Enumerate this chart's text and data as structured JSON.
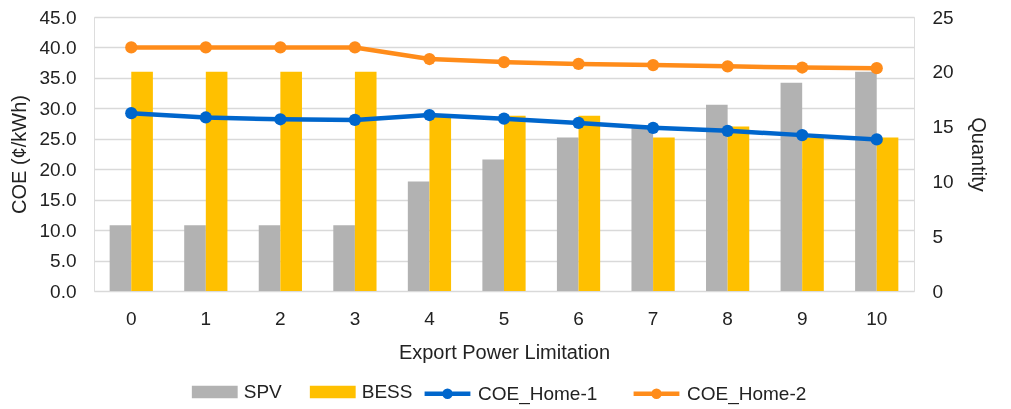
{
  "chart_data": {
    "type": "bar",
    "xlabel": "Export Power Limitation",
    "ylabel": "COE (¢/kWh)",
    "y2label": "Quantity",
    "categories": [
      "0",
      "1",
      "2",
      "3",
      "4",
      "5",
      "6",
      "7",
      "8",
      "9",
      "10"
    ],
    "series": [
      {
        "name": "SPV",
        "axis": "y2",
        "color": "#b2b2b2",
        "values": [
          6,
          6,
          6,
          6,
          10,
          12,
          14,
          15,
          17,
          19,
          20
        ]
      },
      {
        "name": "BESS",
        "axis": "y2",
        "color": "#ffc000",
        "values": [
          20,
          20,
          20,
          20,
          16,
          16,
          16,
          14,
          15,
          14,
          14
        ]
      },
      {
        "name": "COE_Home-1",
        "type": "line",
        "axis": "y",
        "color": "#0066cc",
        "values": [
          29.2,
          28.5,
          28.2,
          28.1,
          28.9,
          28.3,
          27.6,
          26.8,
          26.3,
          25.6,
          24.9
        ]
      },
      {
        "name": "COE_Home-2",
        "type": "line",
        "axis": "y",
        "color": "#ff8c1a",
        "values": [
          40.0,
          40.0,
          40.0,
          40.0,
          38.1,
          37.6,
          37.3,
          37.1,
          36.9,
          36.7,
          36.6
        ]
      }
    ],
    "ylim": [
      0,
      45
    ],
    "yticks": [
      {
        "value": 0,
        "label": "0.0"
      },
      {
        "value": 5,
        "label": "5.0"
      },
      {
        "value": 10,
        "label": "10.0"
      },
      {
        "value": 15,
        "label": "15.0"
      },
      {
        "value": 20,
        "label": "20.0"
      },
      {
        "value": 25,
        "label": "25.0"
      },
      {
        "value": 30,
        "label": "30.0"
      },
      {
        "value": 35,
        "label": "35.0"
      },
      {
        "value": 40,
        "label": "40.0"
      },
      {
        "value": 45,
        "label": "45.0"
      }
    ],
    "y2lim": [
      0,
      25
    ],
    "y2ticks": [
      0,
      5,
      10,
      15,
      20,
      25
    ],
    "grid": "y",
    "legend": "bottom",
    "marker": "circle",
    "line_style": "solid"
  }
}
